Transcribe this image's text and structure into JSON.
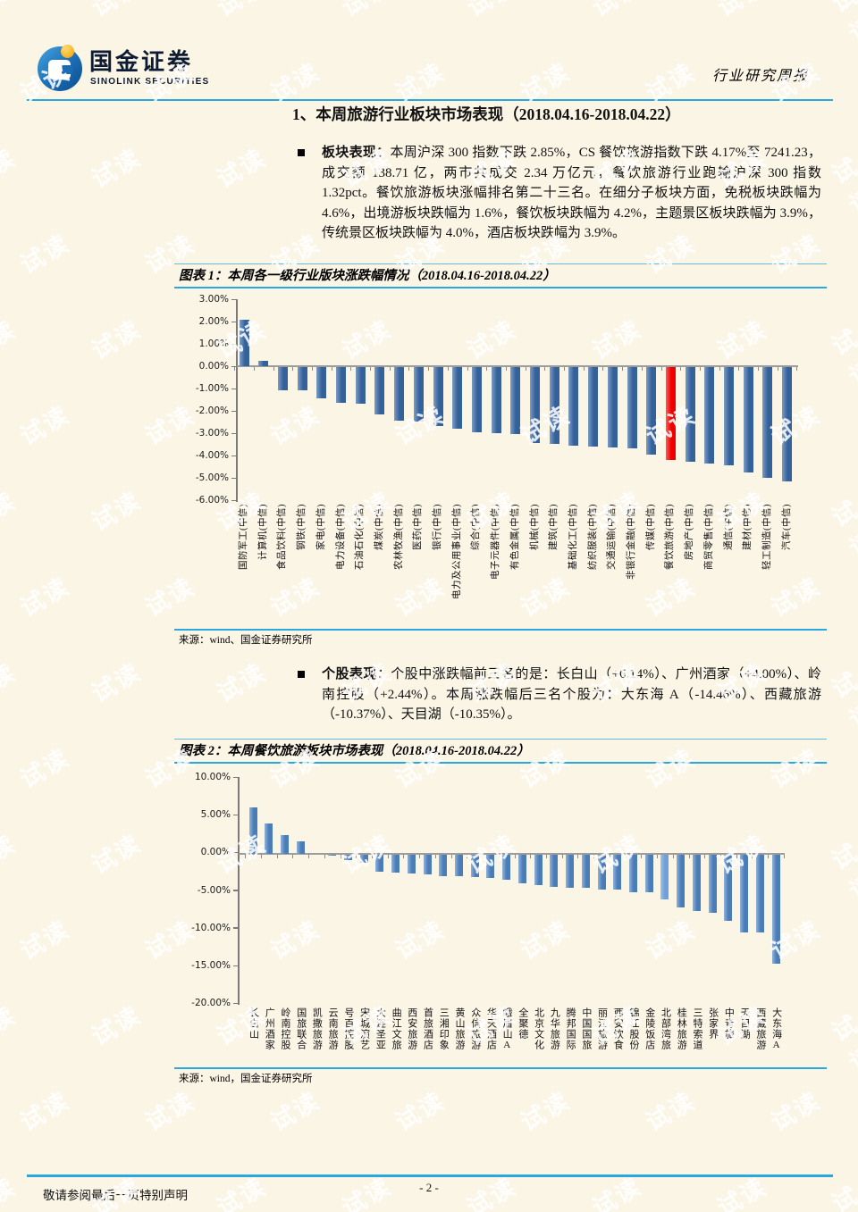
{
  "header": {
    "logo_cn": "国金证券",
    "logo_en": "SINOLINK SECURITIES",
    "report_type": "行业研究周报"
  },
  "section_title": "1、本周旅游行业板块市场表现（2018.04.16-2018.04.22）",
  "bullets": [
    {
      "label": "板块表现：",
      "text": "本周沪深 300 指数下跌 2.85%，CS 餐饮旅游指数下跌 4.17%至 7241.23，成交额 138.71 亿，两市共成交 2.34 万亿元，餐饮旅游行业跑输沪深 300 指数 1.32pct。餐饮旅游板块涨幅排名第二十三名。在细分子板块方面，免税板块跌幅为 4.6%，出境游板块跌幅为 1.6%，餐饮板块跌幅为 4.2%，主题景区板块跌幅为 3.9%，传统景区板块跌幅为 4.0%，酒店板块跌幅为 3.9%。"
    },
    {
      "label": "个股表现：",
      "text": "个股中涨跌幅前三名的是：长白山（+6.14%）、广州酒家（+4.00%）、岭南控股（+2.44%）。本周涨跌幅后三名个股为：大东海 A（-14.46%）、西藏旅游（-10.37%）、天目湖（-10.35%）。"
    }
  ],
  "figure1": {
    "caption": "图表 1：本周各一级行业版块涨跌幅情况（2018.04.16-2018.04.22）",
    "source": "来源：wind、国金证券研究所"
  },
  "figure2": {
    "caption": "图表 2：本周餐饮旅游板块市场表现（2018.04.16-2018.04.22）",
    "source": "来源：wind，国金证券研究所"
  },
  "footer": {
    "page_number": "- 2 -",
    "disclaimer": "敬请参阅最后一页特别声明"
  },
  "watermark": {
    "text": "试读"
  },
  "chart_data": [
    {
      "type": "bar",
      "title": "本周各一级行业版块涨跌幅情况（2018.04.16-2018.04.22）",
      "categories": [
        "国防军工(中信)",
        "计算机(中信)",
        "食品饮料(中信)",
        "钢铁(中信)",
        "家电(中信)",
        "电力设备(中信)",
        "石油石化(中信)",
        "煤炭(中信)",
        "农林牧渔(中信)",
        "医药(中信)",
        "银行(中信)",
        "电力及公用事业(中信)",
        "综合(中信)",
        "电子元器件(中信)",
        "有色金属(中信)",
        "机械(中信)",
        "建筑(中信)",
        "基础化工(中信)",
        "纺织服装(中信)",
        "交通运输(中信)",
        "非银行金融(中信)",
        "传媒(中信)",
        "餐饮旅游(中信)",
        "房地产(中信)",
        "商贸零售(中信)",
        "通信(中信)",
        "建材(中信)",
        "轻工制造(中信)",
        "汽车(中信)"
      ],
      "values": [
        2.1,
        0.25,
        -1.05,
        -1.05,
        -1.4,
        -1.6,
        -1.65,
        -2.1,
        -2.4,
        -2.45,
        -2.65,
        -2.75,
        -2.9,
        -2.95,
        -3.0,
        -3.4,
        -3.45,
        -3.5,
        -3.55,
        -3.6,
        -3.65,
        -3.9,
        -4.17,
        -4.25,
        -4.3,
        -4.4,
        -4.7,
        -4.95,
        -5.1
      ],
      "ylim": [
        -6,
        3
      ],
      "ytick_step": 1,
      "yticklabels": [
        "3.00%",
        "2.00%",
        "1.00%",
        "0.00%",
        "-1.00%",
        "-2.00%",
        "-3.00%",
        "-4.00%",
        "-5.00%",
        "-6.00%"
      ],
      "grid": false,
      "legend": "none",
      "bar_color": "#35619B",
      "bar_color_light": "#7B9CC4",
      "highlight_index": 22,
      "highlight_color": "#EE0000",
      "highlight_color_light": "#FF5A5A",
      "highlight_category": "餐饮旅游(中信)"
    },
    {
      "type": "bar",
      "title": "本周餐饮旅游板块市场表现（2018.04.16-2018.04.22）",
      "categories": [
        "长白山",
        "广州酒家",
        "岭南控股",
        "国旅联合",
        "凯撒旅游",
        "云南旅游",
        "号百控股",
        "宋城演艺",
        "大连圣亚",
        "曲江文旅",
        "西安旅游",
        "首旅酒店",
        "三湘印象",
        "黄山旅游",
        "众信旅游",
        "华天酒店",
        "峨眉山A",
        "全聚德",
        "北京文化",
        "九华旅游",
        "腾邦国际",
        "中国国旅",
        "丽江旅游",
        "西安饮食",
        "锦江股份",
        "金陵饭店",
        "北部湾旅",
        "桂林旅游",
        "三特索道",
        "张家界",
        "中青旅",
        "天目湖",
        "西藏旅游",
        "大东海A"
      ],
      "values": [
        6.14,
        4.0,
        2.44,
        1.6,
        0.0,
        -0.1,
        -0.7,
        -1.1,
        -2.3,
        -2.4,
        -2.5,
        -2.6,
        -2.9,
        -2.9,
        -3.0,
        -3.15,
        -3.3,
        -3.85,
        -4.05,
        -4.25,
        -4.45,
        -4.45,
        -4.65,
        -4.65,
        -4.95,
        -5.05,
        -5.9,
        -7.0,
        -7.5,
        -7.75,
        -8.8,
        -10.35,
        -10.37,
        -14.46
      ],
      "ylim": [
        -20,
        10
      ],
      "ytick_step": 5,
      "yticklabels": [
        "10.00%",
        "5.00%",
        "0.00%",
        "-5.00%",
        "-10.00%",
        "-15.00%",
        "-20.00%"
      ],
      "grid": false,
      "legend": "none",
      "bar_color": "#4A7CB8",
      "bar_color_light": "#8FB2D8",
      "highlight_index": 26,
      "highlight_color": "#6FA0D9",
      "highlight_color_light": "#9FC1E5",
      "highlight_category": "北部湾旅"
    }
  ]
}
